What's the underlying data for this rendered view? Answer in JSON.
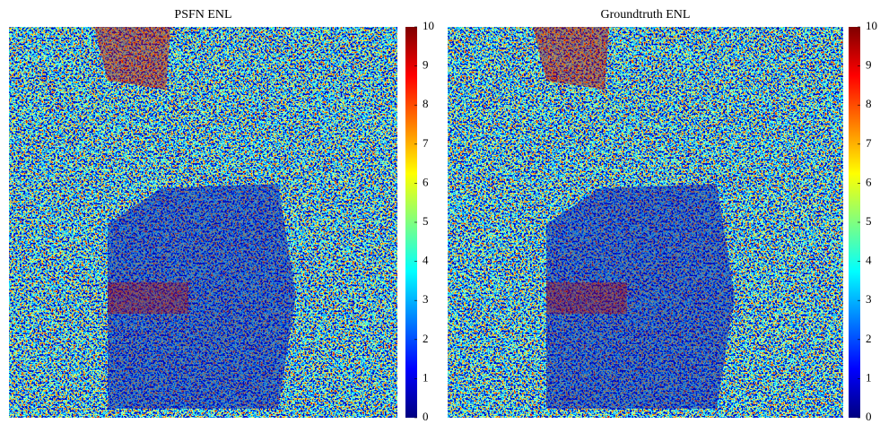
{
  "chart_data": [
    {
      "type": "image",
      "title": "PSFN ENL",
      "colormap": "jet",
      "clim": [
        0,
        10
      ],
      "cticks": [
        0,
        1,
        2,
        3,
        4,
        5,
        6,
        7,
        8,
        9,
        10
      ]
    },
    {
      "type": "image",
      "title": "Groundtruth ENL",
      "colormap": "jet",
      "clim": [
        0,
        10
      ],
      "cticks": [
        0,
        1,
        2,
        3,
        4,
        5,
        6,
        7,
        8,
        9,
        10
      ]
    }
  ]
}
